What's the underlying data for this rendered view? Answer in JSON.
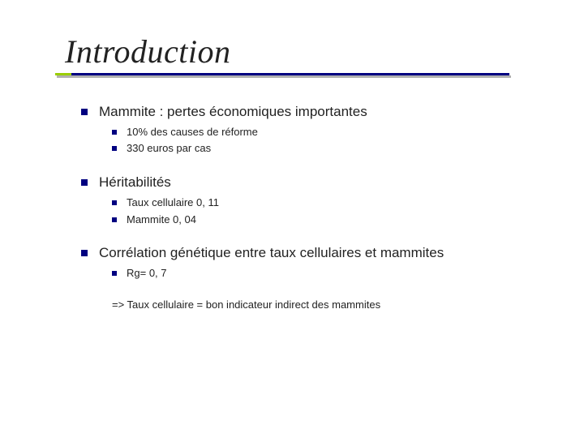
{
  "title": "Introduction",
  "colors": {
    "bullet": "#000080",
    "underline": "#000080",
    "underline_accent": "#9acd00",
    "underline_shadow": "#b0b0b0",
    "text": "#222222",
    "background": "#ffffff"
  },
  "typography": {
    "title_font": "Georgia, serif",
    "title_size_pt": 30,
    "title_style": "italic",
    "body_font": "Verdana, sans-serif",
    "level1_size_pt": 13,
    "level2_size_pt": 10
  },
  "bullets": [
    {
      "text": "Mammite : pertes économiques importantes",
      "children": [
        {
          "text": "10% des causes de réforme"
        },
        {
          "text": "330 euros par cas"
        }
      ]
    },
    {
      "text": "Héritabilités",
      "children": [
        {
          "text": "Taux cellulaire 0, 11"
        },
        {
          "text": "Mammite 0, 04"
        }
      ]
    },
    {
      "text": "Corrélation génétique entre taux cellulaires et mammites",
      "children": [
        {
          "text": "Rg= 0, 7"
        }
      ]
    }
  ],
  "conclusion": "=> Taux cellulaire = bon indicateur indirect des mammites"
}
